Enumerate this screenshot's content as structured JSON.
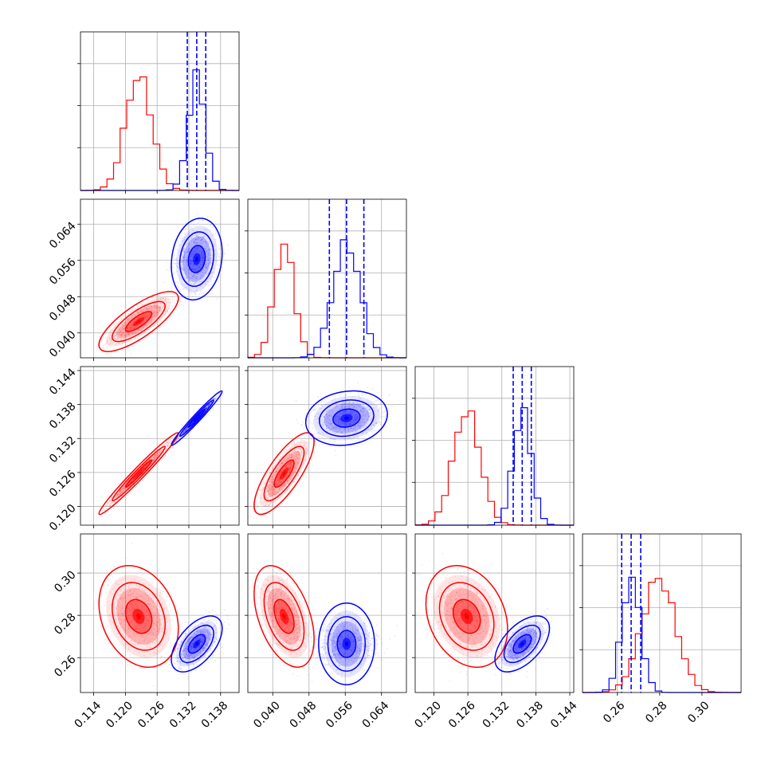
{
  "chart_data": {
    "type": "corner",
    "parameters": [
      "",
      "",
      "",
      ""
    ],
    "colors": {
      "red": "#ff0000",
      "blue": "#0000ff",
      "grid": "#b0b0b0"
    },
    "axes": {
      "p0": {
        "range": [
          0.1115,
          0.1415
        ],
        "ticks": [
          "0.114",
          "0.120",
          "0.126",
          "0.132",
          "0.138"
        ],
        "tick_values": [
          0.114,
          0.12,
          0.126,
          0.132,
          0.138
        ]
      },
      "p1": {
        "range": [
          0.0345,
          0.0695
        ],
        "ticks": [
          "0.040",
          "0.048",
          "0.056",
          "0.064"
        ],
        "tick_values": [
          0.04,
          0.048,
          0.056,
          0.064
        ]
      },
      "p2": {
        "range": [
          0.1167,
          0.1447
        ],
        "ticks": [
          "0.120",
          "0.126",
          "0.132",
          "0.138",
          "0.144"
        ],
        "tick_values": [
          0.12,
          0.126,
          0.132,
          0.138,
          0.144
        ]
      },
      "p3": {
        "range": [
          0.2435,
          0.3185
        ],
        "ticks": [
          "0.26",
          "0.28",
          "0.30"
        ],
        "tick_values": [
          0.26,
          0.28,
          0.3
        ]
      }
    },
    "series": [
      {
        "color": "red",
        "mean": [
          0.1225,
          0.0425,
          0.1258,
          0.2795
        ],
        "sigma": [
          0.0025,
          0.0022,
          0.0024,
          0.008
        ],
        "corr": {
          "0-1": 0.78,
          "0-2": 0.98,
          "1-2": 0.78,
          "0-3": -0.25,
          "1-3": -0.45,
          "2-3": -0.25
        }
      },
      {
        "color": "blue",
        "mean": [
          0.1335,
          0.0563,
          0.1356,
          0.2665
        ],
        "sigma": [
          0.0016,
          0.003,
          0.0016,
          0.0044
        ],
        "corr": {
          "0-1": 0.15,
          "0-2": 0.98,
          "1-2": 0.15,
          "0-3": 0.55,
          "1-3": 0.0,
          "2-3": 0.55
        }
      }
    ],
    "quantile_lines": {
      "p0": [
        0.1317,
        0.1335,
        0.1352
      ],
      "p1": [
        0.0525,
        0.0563,
        0.0601
      ],
      "p2": [
        0.134,
        0.1356,
        0.1372
      ],
      "p3": [
        0.262,
        0.2665,
        0.271
      ]
    },
    "grid": true
  }
}
